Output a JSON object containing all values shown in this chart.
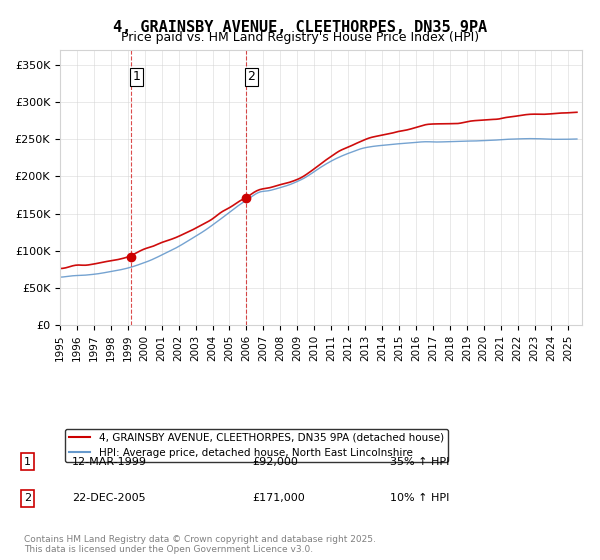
{
  "title": "4, GRAINSBY AVENUE, CLEETHORPES, DN35 9PA",
  "subtitle": "Price paid vs. HM Land Registry's House Price Index (HPI)",
  "ylabel_ticks": [
    "£0",
    "£50K",
    "£100K",
    "£150K",
    "£200K",
    "£250K",
    "£300K",
    "£350K"
  ],
  "ylim": [
    0,
    370000
  ],
  "xlim_start": 1995,
  "xlim_end": 2026,
  "red_color": "#cc0000",
  "blue_color": "#6699cc",
  "dashed_color": "#cc0000",
  "legend_line1": "4, GRAINSBY AVENUE, CLEETHORPES, DN35 9PA (detached house)",
  "legend_line2": "HPI: Average price, detached house, North East Lincolnshire",
  "sale1_label": "1",
  "sale1_date": "12-MAR-1999",
  "sale1_price": "£92,000",
  "sale1_hpi": "35% ↑ HPI",
  "sale2_label": "2",
  "sale2_date": "22-DEC-2005",
  "sale2_price": "£171,000",
  "sale2_hpi": "10% ↑ HPI",
  "footnote": "Contains HM Land Registry data © Crown copyright and database right 2025.\nThis data is licensed under the Open Government Licence v3.0.",
  "sale1_year": 1999.2,
  "sale1_value": 92000,
  "sale2_year": 2005.97,
  "sale2_value": 171000
}
